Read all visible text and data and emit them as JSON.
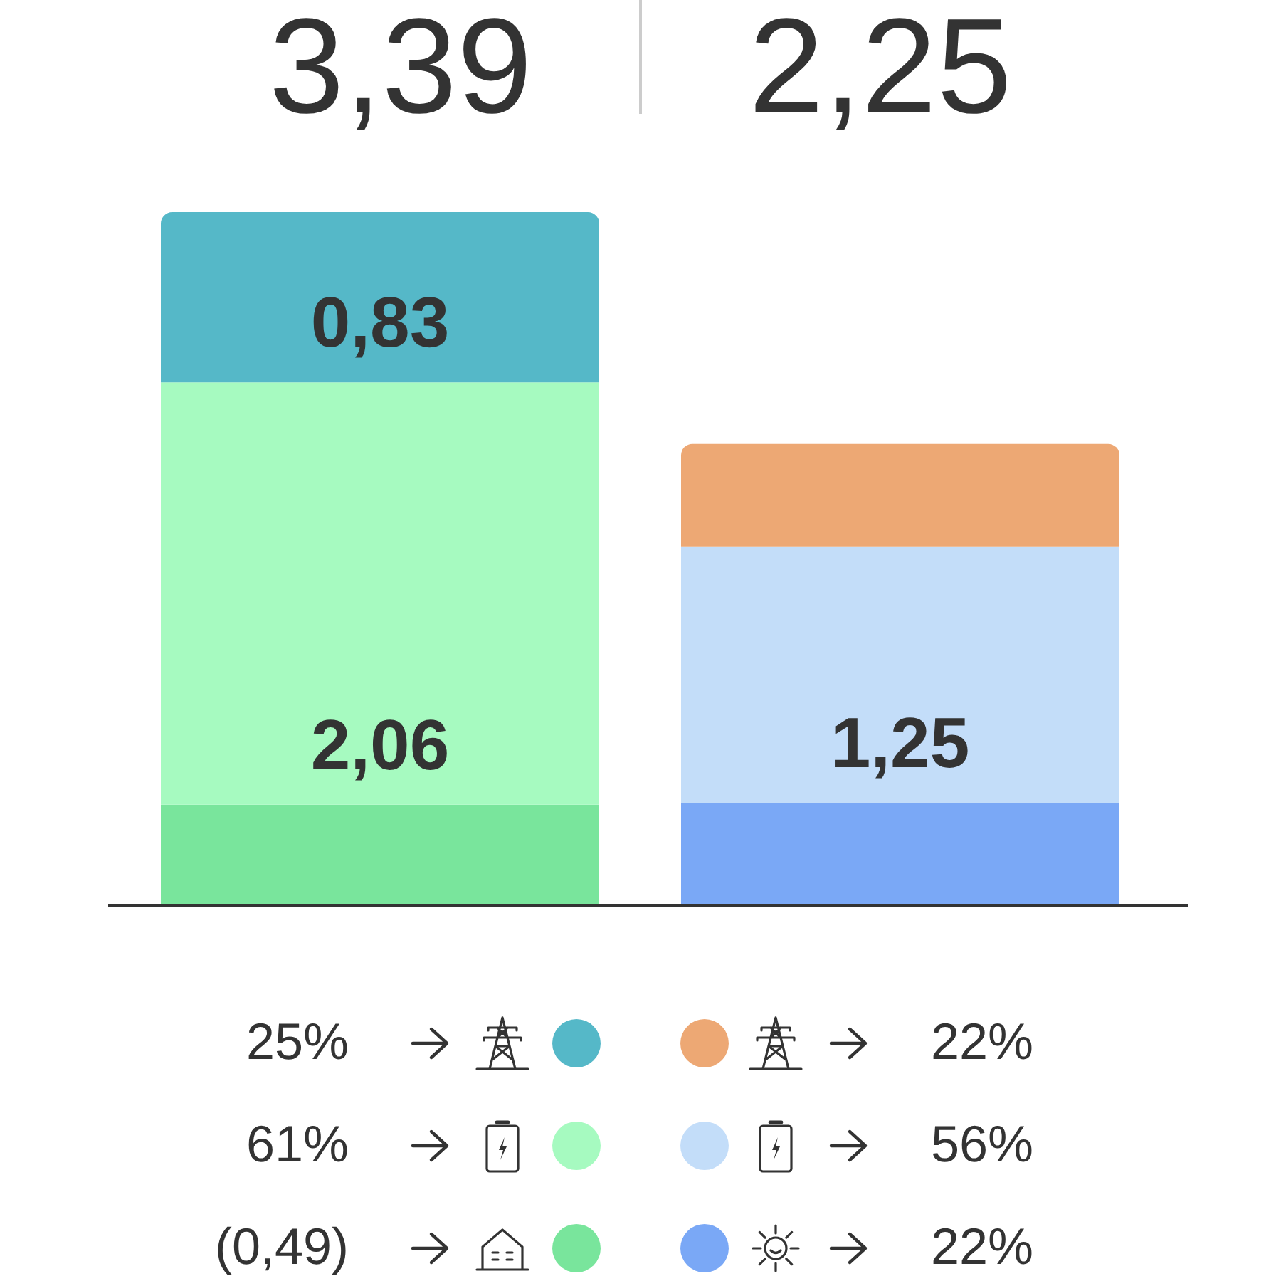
{
  "chart_data": {
    "type": "bar",
    "stacked": true,
    "categories": [
      null,
      null
    ],
    "series": [
      {
        "color": "#79e59c",
        "values": [
          0.49,
          null
        ]
      },
      {
        "color": "#7aa8f6",
        "values": [
          null,
          0.5
        ]
      },
      {
        "color": "#a6fac0",
        "values": [
          2.06,
          null
        ],
        "value_labels": [
          "2,06",
          null
        ]
      },
      {
        "color": "#c3ddf9",
        "values": [
          null,
          1.25
        ],
        "value_labels": [
          null,
          "1,25"
        ]
      },
      {
        "color": "#55b8c8",
        "values": [
          0.83,
          null
        ],
        "value_labels": [
          "0,83",
          null
        ]
      },
      {
        "color": "#eda874",
        "values": [
          null,
          0.5
        ]
      }
    ],
    "totals": [
      "3,39",
      "2,25"
    ],
    "annotations": [
      "25%",
      "22%",
      "61%",
      "56%",
      "(0,49)",
      "22%"
    ]
  }
}
